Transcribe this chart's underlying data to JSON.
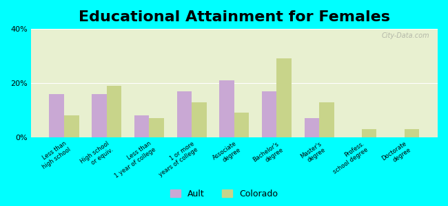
{
  "title": "Educational Attainment for Females",
  "categories": [
    "Less than\nhigh school",
    "High school\nor equiv.",
    "Less than\n1 year of college",
    "1 or more\nyears of college",
    "Associate\ndegree",
    "Bachelor's\ndegree",
    "Master's\ndegree",
    "Profess.\nschool degree",
    "Doctorate\ndegree"
  ],
  "ault_values": [
    16,
    16,
    8,
    17,
    21,
    17,
    7,
    0,
    0
  ],
  "colorado_values": [
    8,
    19,
    7,
    13,
    9,
    29,
    13,
    3,
    3
  ],
  "ault_color": "#c9a8d4",
  "colorado_color": "#c8d48a",
  "background_color": "#00ffff",
  "plot_bg_top": "#e8f0d0",
  "plot_bg_bottom": "#f8fcee",
  "ylim": [
    0,
    40
  ],
  "yticks": [
    0,
    20,
    40
  ],
  "ytick_labels": [
    "0%",
    "20%",
    "40%"
  ],
  "title_fontsize": 16,
  "bar_width": 0.35,
  "watermark": "City-Data.com",
  "legend_labels": [
    "Ault",
    "Colorado"
  ]
}
